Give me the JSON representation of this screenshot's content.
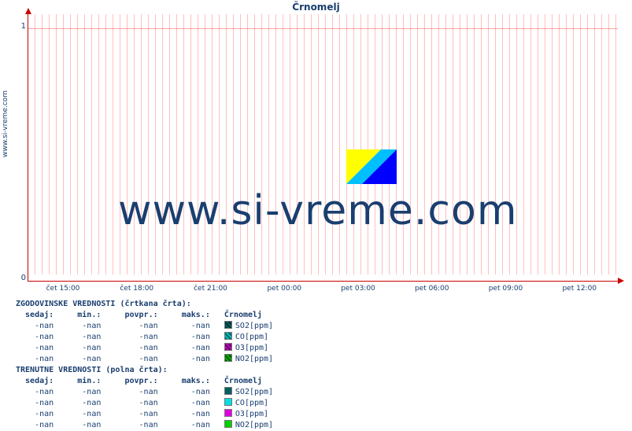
{
  "site": "www.si-vreme.com",
  "title": "Črnomelj",
  "watermark_text": "www.si-vreme.com",
  "logo_colors": {
    "yellow": "#ffff00",
    "cyan": "#00bfff",
    "blue": "#0000ff"
  },
  "chart": {
    "type": "line",
    "background_color": "#ffffff",
    "axis_color": "#cc0000",
    "grid_color": "rgba(255,0,0,0.25)",
    "text_color": "#1a3e6f",
    "ylim": [
      0,
      1.05
    ],
    "yticks": [
      0,
      1
    ],
    "x_labels": [
      "čet 15:00",
      "čet 18:00",
      "čet 21:00",
      "pet 00:00",
      "pet 03:00",
      "pet 06:00",
      "pet 09:00",
      "pet 12:00"
    ],
    "x_positions_pct": [
      6,
      18.5,
      31,
      43.5,
      56,
      68.5,
      81,
      93.5
    ],
    "series_historical": [
      {
        "name": "SO2[ppm]",
        "color": "#006060",
        "data": []
      },
      {
        "name": "CO[ppm]",
        "color": "#00c0c0",
        "data": []
      },
      {
        "name": "O3[ppm]",
        "color": "#c000c0",
        "data": []
      },
      {
        "name": "NO2[ppm]",
        "color": "#00b000",
        "data": []
      }
    ],
    "series_current": [
      {
        "name": "SO2[ppm]",
        "color": "#006060",
        "data": []
      },
      {
        "name": "CO[ppm]",
        "color": "#00e0e0",
        "data": []
      },
      {
        "name": "O3[ppm]",
        "color": "#e000e0",
        "data": []
      },
      {
        "name": "NO2[ppm]",
        "color": "#00d000",
        "data": []
      }
    ]
  },
  "legend": {
    "station": "Črnomelj",
    "hist_title": "ZGODOVINSKE VREDNOSTI (črtkana črta):",
    "cur_title": "TRENUTNE VREDNOSTI (polna črta):",
    "cols": {
      "sedaj": "sedaj:",
      "min": "min.:",
      "povpr": "povpr.:",
      "maks": "maks.:"
    },
    "nan": "-nan",
    "hist_rows": [
      {
        "sedaj": "-nan",
        "min": "-nan",
        "povpr": "-nan",
        "maks": "-nan",
        "key": "SO2[ppm]",
        "color": "#006060",
        "dash": true
      },
      {
        "sedaj": "-nan",
        "min": "-nan",
        "povpr": "-nan",
        "maks": "-nan",
        "key": "CO[ppm]",
        "color": "#00c0c0",
        "dash": true
      },
      {
        "sedaj": "-nan",
        "min": "-nan",
        "povpr": "-nan",
        "maks": "-nan",
        "key": "O3[ppm]",
        "color": "#c000c0",
        "dash": true
      },
      {
        "sedaj": "-nan",
        "min": "-nan",
        "povpr": "-nan",
        "maks": "-nan",
        "key": "NO2[ppm]",
        "color": "#00b000",
        "dash": true
      }
    ],
    "cur_rows": [
      {
        "sedaj": "-nan",
        "min": "-nan",
        "povpr": "-nan",
        "maks": "-nan",
        "key": "SO2[ppm]",
        "color": "#006060",
        "dash": false
      },
      {
        "sedaj": "-nan",
        "min": "-nan",
        "povpr": "-nan",
        "maks": "-nan",
        "key": "CO[ppm]",
        "color": "#00e0e0",
        "dash": false
      },
      {
        "sedaj": "-nan",
        "min": "-nan",
        "povpr": "-nan",
        "maks": "-nan",
        "key": "O3[ppm]",
        "color": "#e000e0",
        "dash": false
      },
      {
        "sedaj": "-nan",
        "min": "-nan",
        "povpr": "-nan",
        "maks": "-nan",
        "key": "NO2[ppm]",
        "color": "#00d000",
        "dash": false
      }
    ]
  }
}
